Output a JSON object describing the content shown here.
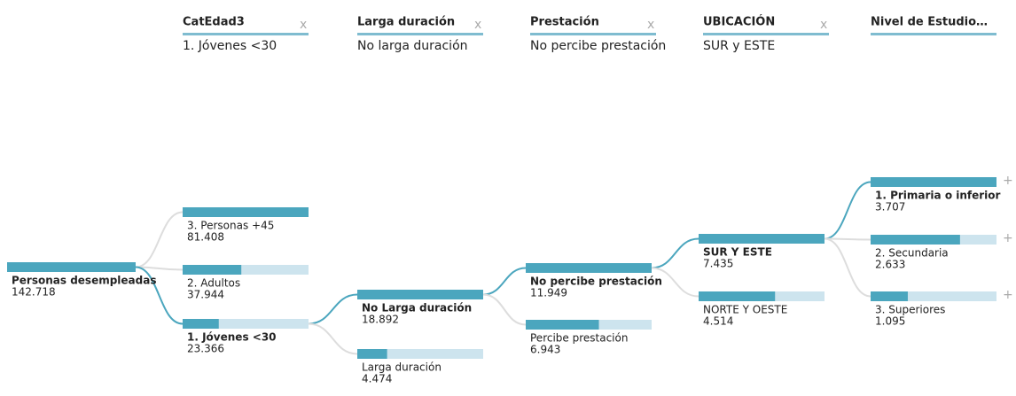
{
  "root": {
    "label": "Personas desempleadas",
    "value": 142718,
    "value_label": "142.718"
  },
  "levels": [
    {
      "header": {
        "title": "CatEdad3",
        "filter": "1. Jóvenes <30"
      },
      "nodes": [
        {
          "label": "3. Personas +45",
          "value": 81408,
          "value_label": "81.408",
          "selected": false
        },
        {
          "label": "2. Adultos",
          "value": 37944,
          "value_label": "37.944",
          "selected": false
        },
        {
          "label": "1. Jóvenes <30",
          "value": 23366,
          "value_label": "23.366",
          "selected": true
        }
      ]
    },
    {
      "header": {
        "title": "Larga duración",
        "filter": "No larga duración"
      },
      "nodes": [
        {
          "label": "No Larga duración",
          "value": 18892,
          "value_label": "18.892",
          "selected": true
        },
        {
          "label": "Larga duración",
          "value": 4474,
          "value_label": "4.474",
          "selected": false
        }
      ]
    },
    {
      "header": {
        "title": "Prestación",
        "filter": "No percibe prestación"
      },
      "nodes": [
        {
          "label": "No percibe prestación",
          "value": 11949,
          "value_label": "11.949",
          "selected": true
        },
        {
          "label": "Percibe prestación",
          "value": 6943,
          "value_label": "6.943",
          "selected": false
        }
      ]
    },
    {
      "header": {
        "title": "UBICACIÓN",
        "filter": "SUR y ESTE"
      },
      "nodes": [
        {
          "label": "SUR Y ESTE",
          "value": 7435,
          "value_label": "7.435",
          "selected": true
        },
        {
          "label": "NORTE Y OESTE",
          "value": 4514,
          "value_label": "4.514",
          "selected": false
        }
      ]
    },
    {
      "header": {
        "title": "Nivel de Estudio…"
      },
      "nodes": [
        {
          "label": "1. Primaria o inferior",
          "value": 3707,
          "value_label": "3.707",
          "selected": true
        },
        {
          "label": "2. Secundaria",
          "value": 2633,
          "value_label": "2.633",
          "selected": false
        },
        {
          "label": "3. Superiores",
          "value": 1095,
          "value_label": "1.095",
          "selected": false
        }
      ]
    }
  ]
}
